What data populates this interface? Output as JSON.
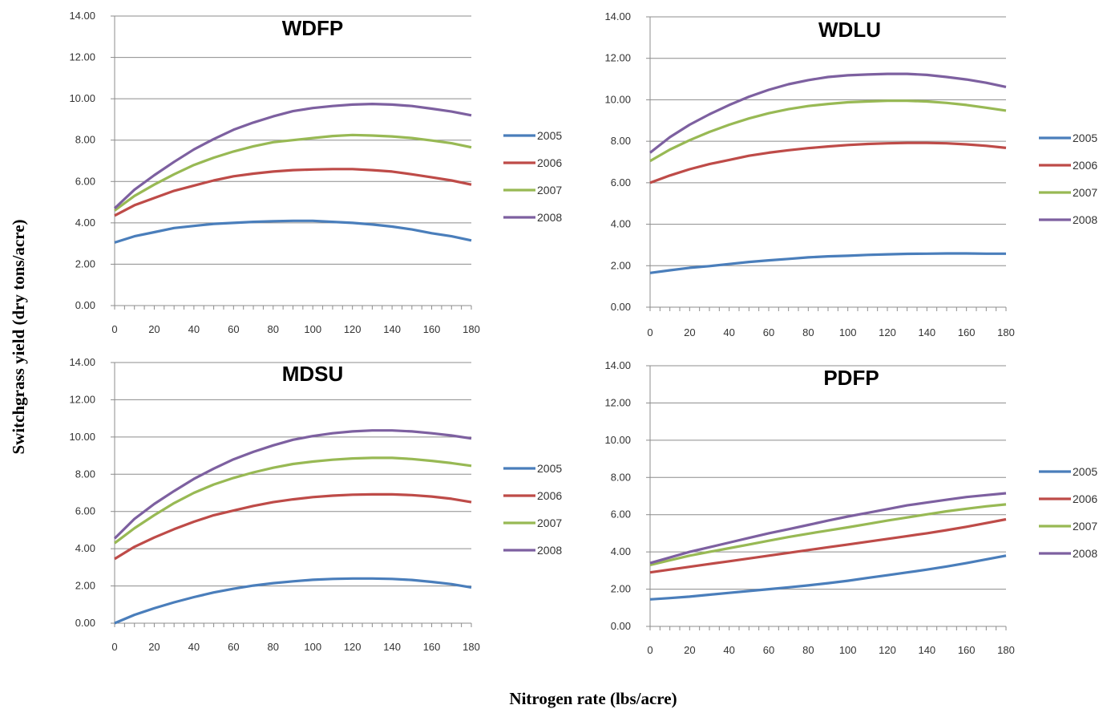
{
  "figure": {
    "ylabel": "Switchgrass yield (dry tons/acre)",
    "xlabel": "Nitrogen rate (lbs/acre)"
  },
  "chart_data": [
    {
      "type": "line",
      "title": "WDFP",
      "x": [
        0,
        10,
        20,
        30,
        40,
        50,
        60,
        70,
        80,
        90,
        100,
        110,
        120,
        130,
        140,
        150,
        160,
        170,
        180
      ],
      "ylim": [
        0,
        14
      ],
      "yticks": [
        "0.00",
        "2.00",
        "4.00",
        "6.00",
        "8.00",
        "10.00",
        "12.00",
        "14.00"
      ],
      "xticks": [
        "0",
        "20",
        "40",
        "60",
        "80",
        "100",
        "120",
        "140",
        "160",
        "180"
      ],
      "grid": true,
      "legend": "right",
      "series": [
        {
          "name": "2005",
          "color": "#4a7ebb",
          "values": [
            3.05,
            3.35,
            3.55,
            3.75,
            3.85,
            3.95,
            4.0,
            4.05,
            4.08,
            4.1,
            4.1,
            4.05,
            4.0,
            3.92,
            3.82,
            3.68,
            3.5,
            3.35,
            3.15
          ]
        },
        {
          "name": "2006",
          "color": "#be4b48",
          "values": [
            4.35,
            4.85,
            5.2,
            5.55,
            5.8,
            6.05,
            6.25,
            6.38,
            6.48,
            6.55,
            6.58,
            6.6,
            6.6,
            6.55,
            6.48,
            6.35,
            6.2,
            6.05,
            5.85
          ]
        },
        {
          "name": "2007",
          "color": "#98b954",
          "values": [
            4.6,
            5.3,
            5.85,
            6.35,
            6.8,
            7.15,
            7.45,
            7.7,
            7.9,
            8.0,
            8.1,
            8.2,
            8.25,
            8.22,
            8.18,
            8.1,
            7.98,
            7.85,
            7.65
          ]
        },
        {
          "name": "2008",
          "color": "#7d60a0",
          "values": [
            4.7,
            5.6,
            6.3,
            6.95,
            7.55,
            8.05,
            8.5,
            8.85,
            9.15,
            9.4,
            9.55,
            9.65,
            9.72,
            9.75,
            9.72,
            9.65,
            9.52,
            9.38,
            9.2
          ]
        }
      ]
    },
    {
      "type": "line",
      "title": "WDLU",
      "x": [
        0,
        10,
        20,
        30,
        40,
        50,
        60,
        70,
        80,
        90,
        100,
        110,
        120,
        130,
        140,
        150,
        160,
        170,
        180
      ],
      "ylim": [
        0,
        14
      ],
      "yticks": [
        "0.00",
        "2.00",
        "4.00",
        "6.00",
        "8.00",
        "10.00",
        "12.00",
        "14.00"
      ],
      "xticks": [
        "0",
        "20",
        "40",
        "60",
        "80",
        "100",
        "120",
        "140",
        "160",
        "180"
      ],
      "grid": true,
      "legend": "right",
      "series": [
        {
          "name": "2005",
          "color": "#4a7ebb",
          "values": [
            1.65,
            1.78,
            1.9,
            1.98,
            2.08,
            2.18,
            2.26,
            2.33,
            2.4,
            2.45,
            2.48,
            2.52,
            2.55,
            2.57,
            2.58,
            2.59,
            2.59,
            2.58,
            2.58
          ]
        },
        {
          "name": "2006",
          "color": "#be4b48",
          "values": [
            6.0,
            6.35,
            6.65,
            6.9,
            7.1,
            7.3,
            7.45,
            7.57,
            7.67,
            7.75,
            7.82,
            7.87,
            7.9,
            7.92,
            7.92,
            7.9,
            7.85,
            7.78,
            7.68
          ]
        },
        {
          "name": "2007",
          "color": "#98b954",
          "values": [
            7.05,
            7.6,
            8.05,
            8.45,
            8.8,
            9.1,
            9.35,
            9.55,
            9.7,
            9.8,
            9.88,
            9.92,
            9.95,
            9.95,
            9.92,
            9.85,
            9.75,
            9.62,
            9.48
          ]
        },
        {
          "name": "2008",
          "color": "#7d60a0",
          "values": [
            7.45,
            8.2,
            8.8,
            9.3,
            9.75,
            10.15,
            10.48,
            10.75,
            10.95,
            11.1,
            11.18,
            11.22,
            11.25,
            11.25,
            11.2,
            11.1,
            10.98,
            10.82,
            10.62
          ]
        }
      ]
    },
    {
      "type": "line",
      "title": "MDSU",
      "x": [
        0,
        10,
        20,
        30,
        40,
        50,
        60,
        70,
        80,
        90,
        100,
        110,
        120,
        130,
        140,
        150,
        160,
        170,
        180
      ],
      "ylim": [
        0,
        14
      ],
      "yticks": [
        "0.00",
        "2.00",
        "4.00",
        "6.00",
        "8.00",
        "10.00",
        "12.00",
        "14.00"
      ],
      "xticks": [
        "0",
        "20",
        "40",
        "60",
        "80",
        "100",
        "120",
        "140",
        "160",
        "180"
      ],
      "grid": true,
      "legend": "right",
      "series": [
        {
          "name": "2005",
          "color": "#4a7ebb",
          "values": [
            0.0,
            0.45,
            0.8,
            1.12,
            1.4,
            1.65,
            1.85,
            2.02,
            2.15,
            2.25,
            2.33,
            2.38,
            2.4,
            2.4,
            2.38,
            2.32,
            2.22,
            2.1,
            1.92
          ]
        },
        {
          "name": "2006",
          "color": "#be4b48",
          "values": [
            3.45,
            4.1,
            4.6,
            5.05,
            5.45,
            5.8,
            6.05,
            6.3,
            6.5,
            6.65,
            6.77,
            6.85,
            6.9,
            6.92,
            6.92,
            6.88,
            6.8,
            6.68,
            6.5
          ]
        },
        {
          "name": "2007",
          "color": "#98b954",
          "values": [
            4.3,
            5.1,
            5.8,
            6.45,
            7.0,
            7.45,
            7.8,
            8.1,
            8.35,
            8.55,
            8.68,
            8.78,
            8.85,
            8.88,
            8.88,
            8.82,
            8.72,
            8.6,
            8.45
          ]
        },
        {
          "name": "2008",
          "color": "#7d60a0",
          "values": [
            4.55,
            5.6,
            6.4,
            7.1,
            7.75,
            8.3,
            8.8,
            9.2,
            9.55,
            9.85,
            10.05,
            10.2,
            10.3,
            10.35,
            10.35,
            10.3,
            10.2,
            10.08,
            9.92
          ]
        }
      ]
    },
    {
      "type": "line",
      "title": "PDFP",
      "x": [
        0,
        10,
        20,
        30,
        40,
        50,
        60,
        70,
        80,
        90,
        100,
        110,
        120,
        130,
        140,
        150,
        160,
        170,
        180
      ],
      "ylim": [
        0,
        14
      ],
      "yticks": [
        "0.00",
        "2.00",
        "4.00",
        "6.00",
        "8.00",
        "10.00",
        "12.00",
        "14.00"
      ],
      "xticks": [
        "0",
        "20",
        "40",
        "60",
        "80",
        "100",
        "120",
        "140",
        "160",
        "180"
      ],
      "grid": true,
      "legend": "right",
      "series": [
        {
          "name": "2005",
          "color": "#4a7ebb",
          "values": [
            1.45,
            1.52,
            1.6,
            1.7,
            1.8,
            1.9,
            2.0,
            2.1,
            2.2,
            2.32,
            2.45,
            2.6,
            2.75,
            2.9,
            3.05,
            3.22,
            3.4,
            3.6,
            3.8
          ]
        },
        {
          "name": "2006",
          "color": "#be4b48",
          "values": [
            2.9,
            3.05,
            3.2,
            3.35,
            3.5,
            3.65,
            3.8,
            3.95,
            4.1,
            4.25,
            4.4,
            4.55,
            4.7,
            4.85,
            5.0,
            5.17,
            5.35,
            5.55,
            5.75
          ]
        },
        {
          "name": "2007",
          "color": "#98b954",
          "values": [
            3.3,
            3.55,
            3.8,
            4.0,
            4.2,
            4.4,
            4.6,
            4.8,
            4.98,
            5.15,
            5.32,
            5.5,
            5.68,
            5.85,
            6.02,
            6.18,
            6.32,
            6.45,
            6.55
          ]
        },
        {
          "name": "2008",
          "color": "#7d60a0",
          "values": [
            3.4,
            3.7,
            4.0,
            4.25,
            4.5,
            4.75,
            5.0,
            5.22,
            5.45,
            5.68,
            5.9,
            6.1,
            6.3,
            6.5,
            6.65,
            6.8,
            6.95,
            7.05,
            7.15
          ]
        }
      ]
    }
  ]
}
